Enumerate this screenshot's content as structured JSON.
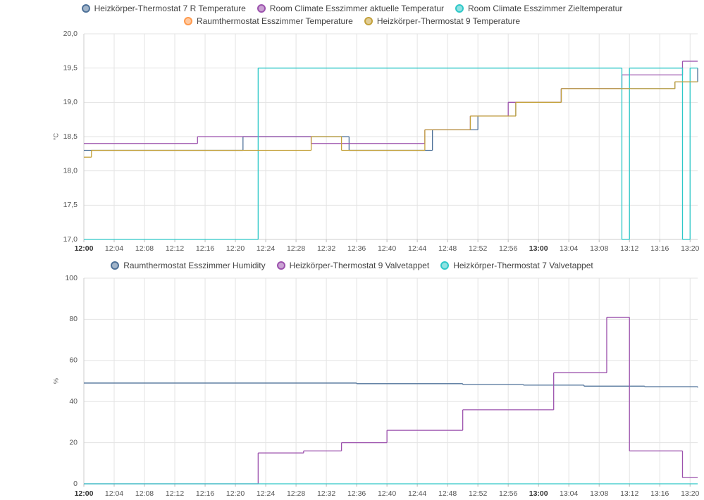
{
  "chart_data": [
    {
      "type": "line",
      "step": true,
      "ylabel": "°C",
      "grid": true,
      "xlim": [
        "12:00",
        "13:21"
      ],
      "xticks": [
        "12:00",
        "12:04",
        "12:08",
        "12:12",
        "12:16",
        "12:20",
        "12:24",
        "12:28",
        "12:32",
        "12:36",
        "12:40",
        "12:44",
        "12:48",
        "12:52",
        "12:56",
        "13:00",
        "13:04",
        "13:08",
        "13:12",
        "13:16",
        "13:20"
      ],
      "ylim": [
        17,
        20
      ],
      "yticks": [
        {
          "value": 17,
          "label": "17,0"
        },
        {
          "value": 17.5,
          "label": "17,5"
        },
        {
          "value": 18,
          "label": "18,0"
        },
        {
          "value": 18.5,
          "label": "18,5"
        },
        {
          "value": 19,
          "label": "19,0"
        },
        {
          "value": 19.5,
          "label": "19,5"
        },
        {
          "value": 20,
          "label": "20,0"
        }
      ],
      "series": [
        {
          "name": "Heizkörper-Thermostat 7 R Temperature",
          "color": "#4f7299",
          "x": [
            "12:00",
            "12:21",
            "12:35",
            "12:46",
            "12:52",
            "12:57",
            "13:03",
            "13:18",
            "13:21"
          ],
          "values": [
            18.3,
            18.5,
            18.3,
            18.6,
            18.8,
            19.0,
            19.2,
            19.3,
            19.5
          ]
        },
        {
          "name": "Room Climate Esszimmer aktuelle Temperatur",
          "color": "#9c52ad",
          "x": [
            "12:00",
            "12:15",
            "12:30",
            "12:45",
            "12:51",
            "12:56",
            "13:03",
            "13:11",
            "13:19"
          ],
          "values": [
            18.4,
            18.5,
            18.4,
            18.6,
            18.8,
            19.0,
            19.2,
            19.4,
            19.6
          ]
        },
        {
          "name": "Room Climate Esszimmer Zieltemperatur",
          "color": "#2ec8c8",
          "x": [
            "12:00",
            "12:23",
            "13:11",
            "13:12",
            "13:19",
            "13:20"
          ],
          "values": [
            17.0,
            19.5,
            17.0,
            19.5,
            17.0,
            19.5
          ]
        },
        {
          "name": "Raumthermostat Esszimmer Temperature",
          "color": "#ff9a4d",
          "x": [],
          "values": []
        },
        {
          "name": "Heizkörper-Thermostat 9 Temperature",
          "color": "#c4a23c",
          "x": [
            "12:00",
            "12:01",
            "12:30",
            "12:34",
            "12:45",
            "12:51",
            "12:57",
            "13:03",
            "13:18"
          ],
          "values": [
            18.2,
            18.3,
            18.5,
            18.3,
            18.6,
            18.8,
            19.0,
            19.2,
            19.3
          ]
        }
      ]
    },
    {
      "type": "line",
      "step": true,
      "ylabel": "%",
      "grid": true,
      "xlim": [
        "12:00",
        "13:21"
      ],
      "xticks": [
        "12:00",
        "12:04",
        "12:08",
        "12:12",
        "12:16",
        "12:20",
        "12:24",
        "12:28",
        "12:32",
        "12:36",
        "12:40",
        "12:44",
        "12:48",
        "12:52",
        "12:56",
        "13:00",
        "13:04",
        "13:08",
        "13:12",
        "13:16",
        "13:20"
      ],
      "ylim": [
        0,
        100
      ],
      "yticks": [
        0,
        20,
        40,
        60,
        80,
        100
      ],
      "series": [
        {
          "name": "Raumthermostat Esszimmer Humidity",
          "color": "#4f7299",
          "x": [
            "12:00",
            "12:36",
            "12:50",
            "12:58",
            "13:06",
            "13:14",
            "13:21"
          ],
          "values": [
            49,
            48.7,
            48.3,
            48,
            47.5,
            47.2,
            46.8
          ]
        },
        {
          "name": "Heizkörper-Thermostat 9 Valvetappet",
          "color": "#9c52ad",
          "x": [
            "12:00",
            "12:23",
            "12:29",
            "12:34",
            "12:40",
            "12:50",
            "13:02",
            "13:09",
            "13:12",
            "13:19"
          ],
          "values": [
            0,
            15,
            16,
            20,
            26,
            36,
            54,
            81,
            16,
            3
          ]
        },
        {
          "name": "Heizkörper-Thermostat 7 Valvetappet",
          "color": "#2ec8c8",
          "x": [
            "12:00"
          ],
          "values": [
            0
          ]
        }
      ]
    }
  ]
}
